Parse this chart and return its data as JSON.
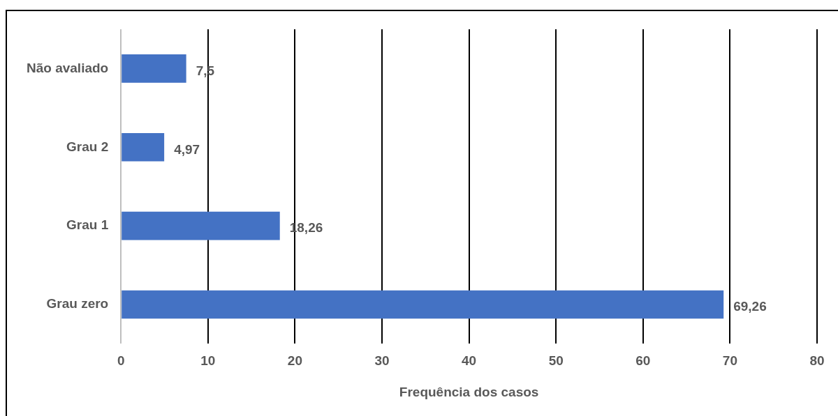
{
  "chart_data": {
    "type": "bar",
    "orientation": "horizontal",
    "xlabel": "Frequência dos casos",
    "categories": [
      "Não avaliado",
      "Grau 2",
      "Grau 1",
      "Grau zero"
    ],
    "values": [
      7.5,
      4.97,
      18.26,
      69.26
    ],
    "value_labels": [
      "7,5",
      "4,97",
      "18,26",
      "69,26"
    ],
    "color": "#4472c4",
    "xlim": [
      0,
      80
    ],
    "xticks": [
      0,
      10,
      20,
      30,
      40,
      50,
      60,
      70,
      80
    ],
    "grid": "x"
  }
}
